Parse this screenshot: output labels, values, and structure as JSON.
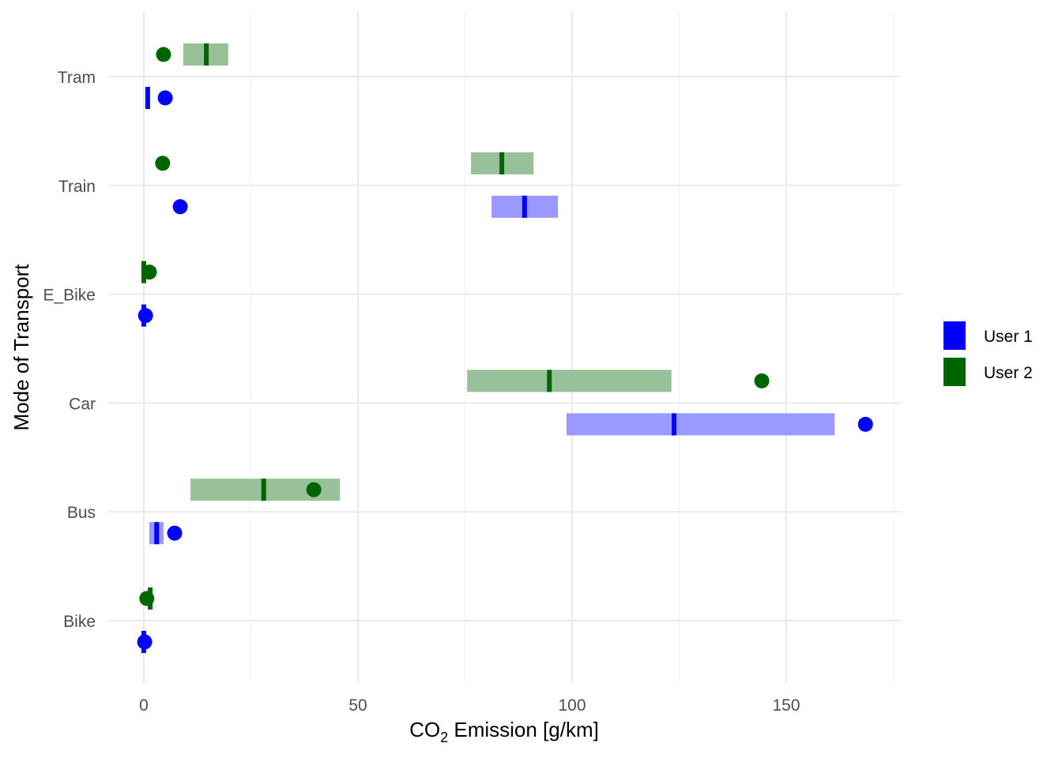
{
  "chart_data": {
    "type": "range-bar-with-points",
    "xlabel_main": "CO",
    "xlabel_sub": "2",
    "xlabel_rest": " Emission [g/km]",
    "ylabel": "Mode of Transport",
    "xlim": [
      -8.5,
      177
    ],
    "xticks": [
      0,
      50,
      100,
      150
    ],
    "xtick_labels": [
      "0",
      "50",
      "100",
      "150"
    ],
    "categories": [
      "Bike",
      "Bus",
      "Car",
      "E_Bike",
      "Train",
      "Tram"
    ],
    "legend": {
      "position": "right",
      "entries": [
        "User 1",
        "User 2"
      ]
    },
    "colors": {
      "User 1": "#0000ff",
      "User 2": "#006400",
      "User 1 bar": "#9999ff",
      "User 2 bar": "#99c199"
    },
    "series": [
      {
        "name": "User 1",
        "data": [
          {
            "category": "Bike",
            "min": 0,
            "max": 0,
            "median": 0,
            "point": 0.2
          },
          {
            "category": "Bus",
            "min": 1.3,
            "max": 4.6,
            "median": 3.0,
            "point": 7.2
          },
          {
            "category": "Car",
            "min": 98.7,
            "max": 161.3,
            "median": 123.8,
            "point": 168.5
          },
          {
            "category": "E_Bike",
            "min": 0,
            "max": 0,
            "median": 0,
            "point": 0.4
          },
          {
            "category": "Train",
            "min": 81.2,
            "max": 96.7,
            "median": 88.9,
            "point": 8.5
          },
          {
            "category": "Tram",
            "min": 0.9,
            "max": 0.9,
            "median": 0.9,
            "point": 5.0
          }
        ]
      },
      {
        "name": "User 2",
        "data": [
          {
            "category": "Bike",
            "min": 1.5,
            "max": 1.5,
            "median": 1.5,
            "point": 0.7
          },
          {
            "category": "Bus",
            "min": 10.9,
            "max": 45.8,
            "median": 28.0,
            "point": 39.7
          },
          {
            "category": "Car",
            "min": 75.5,
            "max": 123.2,
            "median": 94.7,
            "point": 144.3
          },
          {
            "category": "E_Bike",
            "min": 0,
            "max": 0,
            "median": 0,
            "point": 1.3
          },
          {
            "category": "Train",
            "min": 76.4,
            "max": 91.0,
            "median": 83.6,
            "point": 4.4
          },
          {
            "category": "Tram",
            "min": 9.2,
            "max": 19.7,
            "median": 14.6,
            "point": 4.6
          }
        ]
      }
    ]
  }
}
